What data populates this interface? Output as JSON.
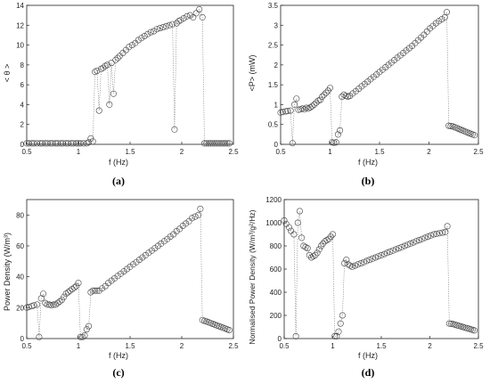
{
  "figure": {
    "panels": [
      {
        "caption": "(a)",
        "ylabel": "< θ >",
        "xlabel": "f (Hz)"
      },
      {
        "caption": "(b)",
        "ylabel": "<P> (mW)",
        "xlabel": "f (Hz)"
      },
      {
        "caption": "(c)",
        "ylabel": "Power Density (W/m³)",
        "xlabel": "f (Hz)"
      },
      {
        "caption": "(d)",
        "ylabel": "Normalised Power Density (W/m³/g²/Hz)",
        "xlabel": "f (Hz)"
      }
    ]
  },
  "style": {
    "marker_stroke": "#444444",
    "line_color": "#777777",
    "axis_color": "#222222"
  },
  "chart_data": [
    {
      "type": "scatter",
      "title": "",
      "caption": "(a)",
      "xlabel": "f (Hz)",
      "ylabel": "< θ >",
      "xlim": [
        0.5,
        2.5
      ],
      "ylim": [
        0,
        14
      ],
      "xticks": [
        0.5,
        1,
        1.5,
        2,
        2.5
      ],
      "yticks": [
        0,
        2,
        4,
        6,
        8,
        10,
        12,
        14
      ],
      "marker": "open-circle",
      "connect_with": "dotted-line",
      "x": [
        0.5,
        0.52,
        0.55,
        0.57,
        0.6,
        0.63,
        0.65,
        0.68,
        0.7,
        0.73,
        0.75,
        0.78,
        0.8,
        0.83,
        0.85,
        0.88,
        0.9,
        0.93,
        0.95,
        0.98,
        1.0,
        1.02,
        1.05,
        1.08,
        1.1,
        1.12,
        1.14,
        1.16,
        1.18,
        1.2,
        1.22,
        1.24,
        1.26,
        1.28,
        1.3,
        1.32,
        1.34,
        1.36,
        1.38,
        1.4,
        1.43,
        1.46,
        1.49,
        1.52,
        1.55,
        1.58,
        1.61,
        1.64,
        1.67,
        1.7,
        1.73,
        1.76,
        1.79,
        1.82,
        1.85,
        1.88,
        1.91,
        1.93,
        1.95,
        1.97,
        1.99,
        2.02,
        2.05,
        2.08,
        2.11,
        2.14,
        2.17,
        2.2,
        2.22,
        2.24,
        2.26,
        2.28,
        2.3,
        2.32,
        2.34,
        2.36,
        2.38,
        2.4,
        2.42,
        2.44,
        2.46
      ],
      "y": [
        0.1,
        0.1,
        0.1,
        0.1,
        0.1,
        0.1,
        0.1,
        0.1,
        0.1,
        0.1,
        0.1,
        0.1,
        0.1,
        0.1,
        0.1,
        0.1,
        0.1,
        0.1,
        0.1,
        0.1,
        0.1,
        0.1,
        0.1,
        0.1,
        0.2,
        0.6,
        0.3,
        7.3,
        7.4,
        3.4,
        7.6,
        7.7,
        7.9,
        8.0,
        4.0,
        8.2,
        5.1,
        8.5,
        8.7,
        8.9,
        9.2,
        9.5,
        9.8,
        10.0,
        10.2,
        10.5,
        10.7,
        10.9,
        11.1,
        11.3,
        11.4,
        11.6,
        11.7,
        11.8,
        11.9,
        12.0,
        12.1,
        1.5,
        12.2,
        12.4,
        12.5,
        12.7,
        12.9,
        13.0,
        12.8,
        13.2,
        13.6,
        12.8,
        0.1,
        0.1,
        0.1,
        0.1,
        0.1,
        0.1,
        0.1,
        0.1,
        0.1,
        0.1,
        0.1,
        0.1,
        0.1
      ]
    },
    {
      "type": "scatter",
      "title": "",
      "caption": "(b)",
      "xlabel": "f (Hz)",
      "ylabel": "<P> (mW)",
      "xlim": [
        0.5,
        2.5
      ],
      "ylim": [
        0,
        3.5
      ],
      "xticks": [
        0.5,
        1,
        1.5,
        2,
        2.5
      ],
      "yticks": [
        0,
        0.5,
        1,
        1.5,
        2,
        2.5,
        3,
        3.5
      ],
      "marker": "open-circle",
      "connect_with": "dotted-line",
      "x": [
        0.5,
        0.52,
        0.55,
        0.57,
        0.6,
        0.62,
        0.64,
        0.66,
        0.68,
        0.7,
        0.72,
        0.74,
        0.76,
        0.78,
        0.8,
        0.82,
        0.84,
        0.86,
        0.88,
        0.9,
        0.92,
        0.94,
        0.96,
        0.98,
        1.0,
        1.02,
        1.04,
        1.06,
        1.08,
        1.1,
        1.12,
        1.14,
        1.16,
        1.18,
        1.2,
        1.23,
        1.26,
        1.29,
        1.32,
        1.35,
        1.38,
        1.41,
        1.44,
        1.47,
        1.5,
        1.53,
        1.56,
        1.59,
        1.62,
        1.65,
        1.68,
        1.71,
        1.74,
        1.77,
        1.8,
        1.83,
        1.86,
        1.89,
        1.92,
        1.95,
        1.98,
        2.01,
        2.04,
        2.07,
        2.1,
        2.13,
        2.16,
        2.18,
        2.2,
        2.22,
        2.24,
        2.26,
        2.28,
        2.3,
        2.32,
        2.34,
        2.36,
        2.38,
        2.4,
        2.42,
        2.44,
        2.46
      ],
      "y": [
        0.8,
        0.82,
        0.83,
        0.84,
        0.85,
        0.03,
        1.0,
        1.15,
        0.87,
        0.88,
        0.9,
        0.88,
        0.92,
        0.9,
        0.93,
        0.96,
        1.0,
        1.05,
        1.1,
        1.12,
        1.2,
        1.25,
        1.3,
        1.35,
        1.42,
        0.05,
        0.04,
        0.05,
        0.25,
        0.35,
        1.2,
        1.25,
        1.22,
        1.2,
        1.22,
        1.28,
        1.34,
        1.4,
        1.46,
        1.52,
        1.58,
        1.64,
        1.7,
        1.76,
        1.82,
        1.88,
        1.94,
        2.0,
        2.06,
        2.12,
        2.18,
        2.24,
        2.3,
        2.36,
        2.42,
        2.48,
        2.55,
        2.62,
        2.69,
        2.76,
        2.84,
        2.92,
        2.98,
        3.05,
        3.1,
        3.15,
        3.2,
        3.33,
        0.47,
        0.46,
        0.45,
        0.43,
        0.41,
        0.39,
        0.37,
        0.35,
        0.33,
        0.31,
        0.29,
        0.27,
        0.25,
        0.23
      ]
    },
    {
      "type": "scatter",
      "title": "",
      "caption": "(c)",
      "xlabel": "f (Hz)",
      "ylabel": "Power Density (W/m³)",
      "xlim": [
        0.5,
        2.5
      ],
      "ylim": [
        0,
        90
      ],
      "xticks": [
        0.5,
        1,
        1.5,
        2,
        2.5
      ],
      "yticks": [
        0,
        20,
        40,
        60,
        80
      ],
      "marker": "open-circle",
      "connect_with": "dotted-line",
      "x": [
        0.5,
        0.52,
        0.55,
        0.57,
        0.6,
        0.62,
        0.64,
        0.66,
        0.68,
        0.7,
        0.72,
        0.74,
        0.76,
        0.78,
        0.8,
        0.82,
        0.84,
        0.86,
        0.88,
        0.9,
        0.92,
        0.94,
        0.96,
        0.98,
        1.0,
        1.02,
        1.04,
        1.06,
        1.08,
        1.1,
        1.12,
        1.14,
        1.16,
        1.18,
        1.2,
        1.23,
        1.26,
        1.29,
        1.32,
        1.35,
        1.38,
        1.41,
        1.44,
        1.47,
        1.5,
        1.53,
        1.56,
        1.59,
        1.62,
        1.65,
        1.68,
        1.71,
        1.74,
        1.77,
        1.8,
        1.83,
        1.86,
        1.89,
        1.92,
        1.95,
        1.98,
        2.01,
        2.04,
        2.07,
        2.1,
        2.13,
        2.16,
        2.18,
        2.2,
        2.22,
        2.24,
        2.26,
        2.28,
        2.3,
        2.32,
        2.34,
        2.36,
        2.38,
        2.4,
        2.42,
        2.44,
        2.46
      ],
      "y": [
        20,
        20.5,
        21,
        21.5,
        22,
        1,
        26,
        29,
        23,
        22,
        22,
        21.5,
        22,
        22,
        23,
        24,
        25,
        27,
        29,
        30,
        31,
        32,
        33,
        34,
        36,
        1,
        1,
        2,
        6,
        8,
        30,
        31,
        31,
        31,
        31,
        32.5,
        34,
        36,
        37.5,
        39,
        40.5,
        42,
        43.5,
        45,
        46.5,
        48,
        49.5,
        51,
        52.5,
        54,
        55.5,
        57,
        58.5,
        60,
        61.5,
        63,
        64.5,
        66,
        67.5,
        69.5,
        71,
        73,
        74.5,
        76,
        78,
        79,
        80,
        84,
        12,
        11.5,
        11,
        10.5,
        10,
        9.5,
        9,
        8.5,
        8,
        7.5,
        7,
        6.5,
        6,
        5.5
      ]
    },
    {
      "type": "scatter",
      "title": "",
      "caption": "(d)",
      "xlabel": "f (Hz)",
      "ylabel": "Normalised Power Density (W/m³/g²/Hz)",
      "xlim": [
        0.5,
        2.5
      ],
      "ylim": [
        0,
        1200
      ],
      "xticks": [
        0.5,
        1,
        1.5,
        2,
        2.5
      ],
      "yticks": [
        0,
        200,
        400,
        600,
        800,
        1000,
        1200
      ],
      "marker": "open-circle",
      "connect_with": "dotted-line",
      "x": [
        0.5,
        0.52,
        0.55,
        0.57,
        0.6,
        0.62,
        0.64,
        0.66,
        0.68,
        0.7,
        0.72,
        0.74,
        0.76,
        0.78,
        0.8,
        0.82,
        0.84,
        0.86,
        0.88,
        0.9,
        0.92,
        0.94,
        0.96,
        0.98,
        1.0,
        1.02,
        1.04,
        1.06,
        1.08,
        1.1,
        1.12,
        1.14,
        1.16,
        1.18,
        1.2,
        1.23,
        1.26,
        1.29,
        1.32,
        1.35,
        1.38,
        1.41,
        1.44,
        1.47,
        1.5,
        1.53,
        1.56,
        1.59,
        1.62,
        1.65,
        1.68,
        1.71,
        1.74,
        1.77,
        1.8,
        1.83,
        1.86,
        1.89,
        1.92,
        1.95,
        1.98,
        2.01,
        2.04,
        2.07,
        2.1,
        2.13,
        2.16,
        2.18,
        2.2,
        2.22,
        2.24,
        2.26,
        2.28,
        2.3,
        2.32,
        2.34,
        2.36,
        2.38,
        2.4,
        2.42,
        2.44,
        2.46
      ],
      "y": [
        1020,
        990,
        960,
        930,
        900,
        20,
        1000,
        1100,
        870,
        800,
        790,
        780,
        720,
        700,
        710,
        720,
        740,
        770,
        800,
        820,
        840,
        850,
        860,
        880,
        900,
        20,
        20,
        60,
        130,
        200,
        650,
        680,
        640,
        630,
        620,
        630,
        640,
        650,
        660,
        670,
        680,
        690,
        700,
        710,
        720,
        730,
        740,
        750,
        760,
        770,
        780,
        790,
        800,
        810,
        820,
        830,
        840,
        850,
        860,
        870,
        880,
        890,
        900,
        905,
        910,
        915,
        920,
        970,
        130,
        128,
        125,
        120,
        115,
        110,
        105,
        100,
        95,
        90,
        85,
        80,
        75,
        70
      ]
    }
  ]
}
